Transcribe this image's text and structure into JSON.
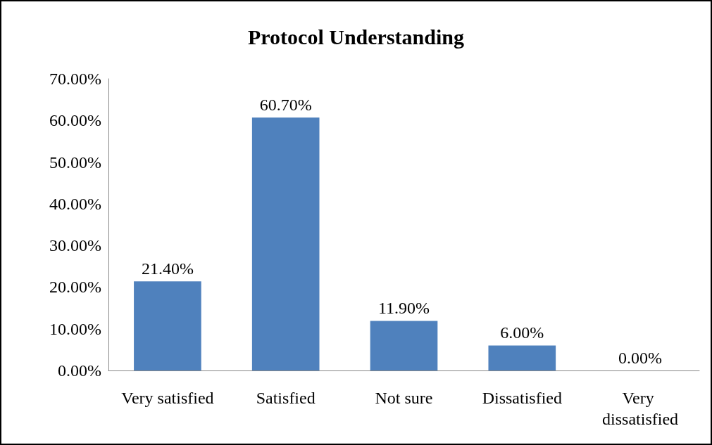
{
  "chart_data": {
    "type": "bar",
    "title": "Protocol Understanding",
    "categories": [
      "Very satisfied",
      "Satisfied",
      "Not sure",
      "Dissatisfied",
      "Very dissatisfied"
    ],
    "values": [
      21.4,
      60.7,
      11.9,
      6.0,
      0.0
    ],
    "value_labels": [
      "21.40%",
      "60.70%",
      "11.90%",
      "6.00%",
      "0.00%"
    ],
    "color": "#4f81bd",
    "ylim": [
      0,
      70
    ],
    "yticks": [
      {
        "value": 0,
        "label": "0.00%"
      },
      {
        "value": 10,
        "label": "10.00%"
      },
      {
        "value": 20,
        "label": "20.00%"
      },
      {
        "value": 30,
        "label": "30.00%"
      },
      {
        "value": 40,
        "label": "40.00%"
      },
      {
        "value": 50,
        "label": "50.00%"
      },
      {
        "value": 60,
        "label": "60.00%"
      },
      {
        "value": 70,
        "label": "70.00%"
      }
    ],
    "grid": false
  }
}
